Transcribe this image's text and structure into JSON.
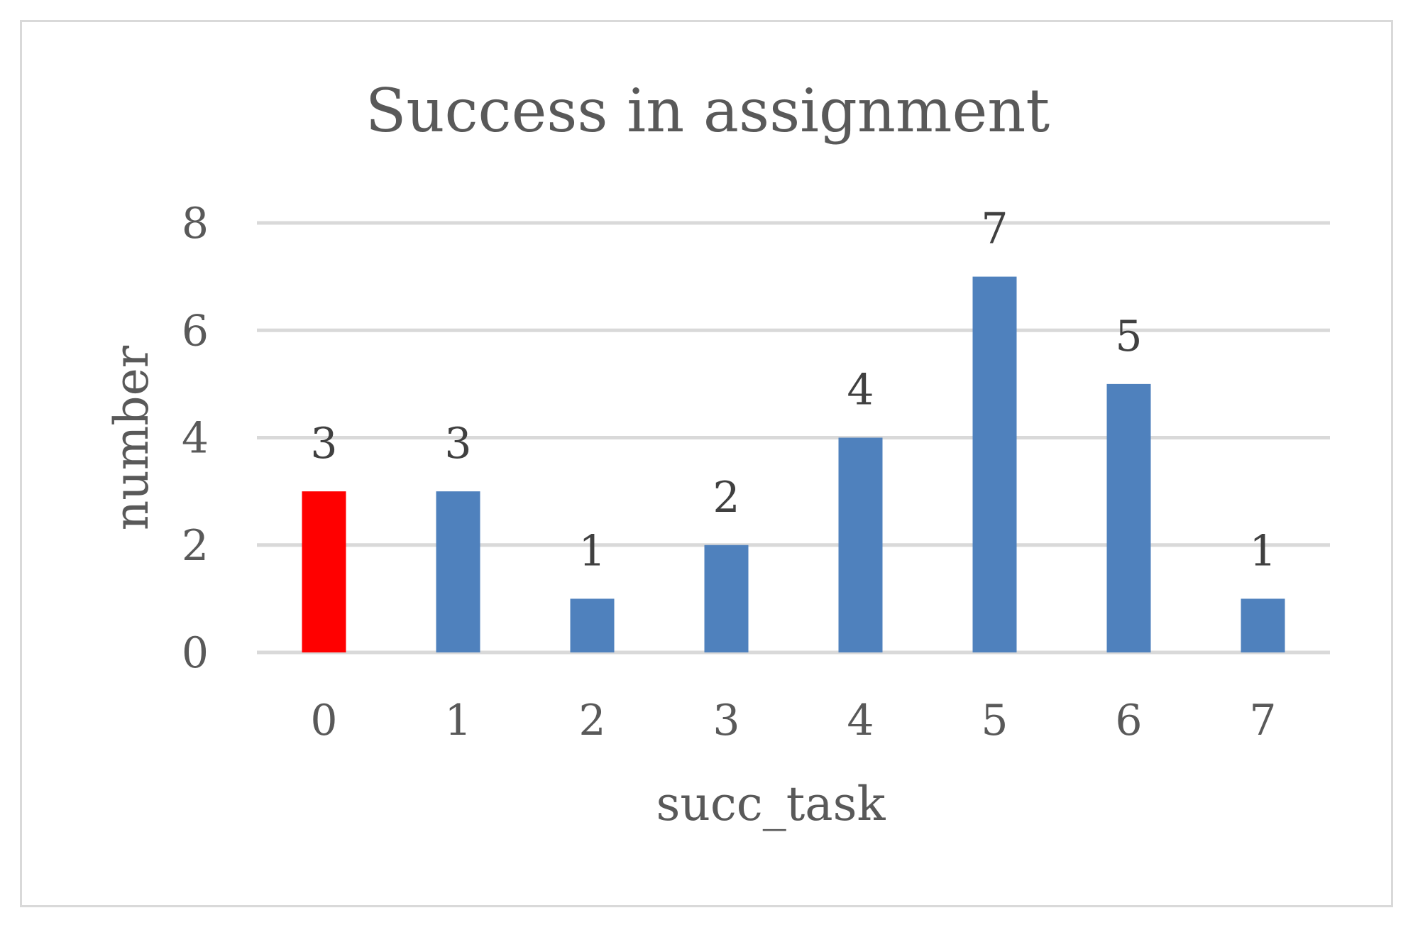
{
  "chart_data": {
    "type": "bar",
    "title": "Success in assignment",
    "xlabel": "succ_task",
    "ylabel": "number",
    "categories": [
      "0",
      "1",
      "2",
      "3",
      "4",
      "5",
      "6",
      "7"
    ],
    "values": [
      3,
      3,
      1,
      2,
      4,
      7,
      5,
      1
    ],
    "ylim": [
      0,
      8
    ],
    "yticks": [
      "0",
      "2",
      "4",
      "6",
      "8"
    ],
    "grid": true,
    "legend": "none",
    "colors": {
      "default": "#4f81bd",
      "highlight": "#ff0000",
      "gridline": "#d9d9d9"
    },
    "highlighted_categories": [
      "0"
    ]
  }
}
